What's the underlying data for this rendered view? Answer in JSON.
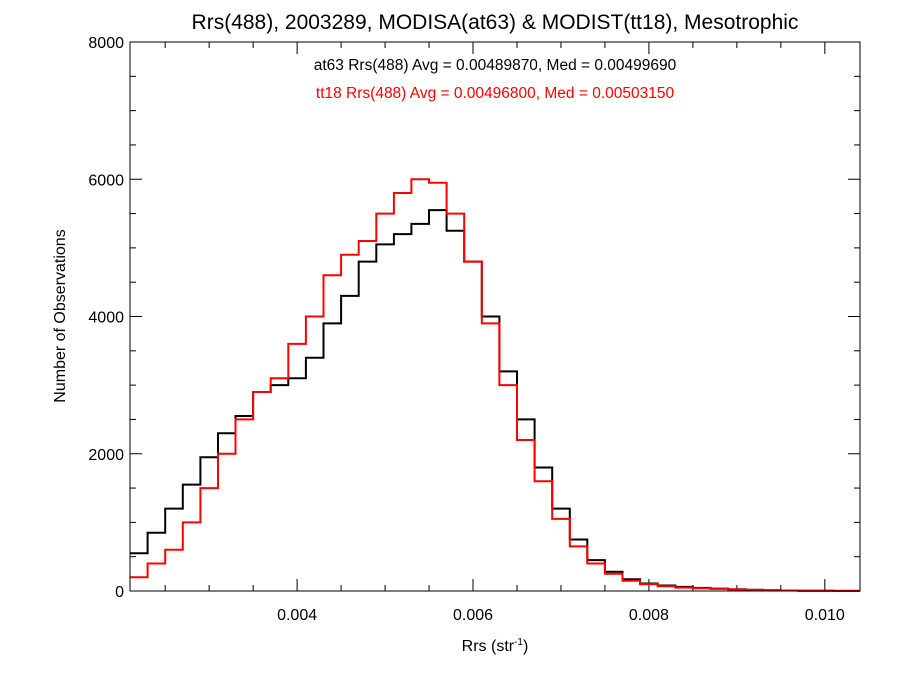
{
  "chart_data": {
    "type": "line",
    "title": "Rrs(488), 2003289, MODISA(at63) & MODIST(tt18), Mesotrophic",
    "xlabel_main": "Rrs (str",
    "xlabel_sup": "-1",
    "xlabel_end": ")",
    "ylabel": "Number of Observations",
    "xlim": [
      0.0021,
      0.0104
    ],
    "ylim": [
      0,
      8000
    ],
    "x_ticks": [
      0.004,
      0.006,
      0.008,
      0.01
    ],
    "x_tick_labels": [
      "0.004",
      "0.006",
      "0.008",
      "0.010"
    ],
    "y_ticks": [
      0,
      2000,
      4000,
      6000,
      8000
    ],
    "y_tick_labels": [
      "0",
      "2000",
      "4000",
      "6000",
      "8000"
    ],
    "grid": false,
    "annotations": [
      {
        "text": "at63 Rrs(488) Avg = 0.00489870, Med = 0.00499690",
        "color": "#000000"
      },
      {
        "text": "tt18 Rrs(488) Avg = 0.00496800, Med = 0.00503150",
        "color": "#ff0000"
      }
    ],
    "series": [
      {
        "color": "#000000",
        "points": [
          [
            0.0021,
            550
          ],
          [
            0.0023,
            850
          ],
          [
            0.0025,
            1200
          ],
          [
            0.0027,
            1550
          ],
          [
            0.0029,
            1950
          ],
          [
            0.0031,
            2300
          ],
          [
            0.0033,
            2550
          ],
          [
            0.0035,
            2900
          ],
          [
            0.0037,
            3000
          ],
          [
            0.0039,
            3100
          ],
          [
            0.0041,
            3400
          ],
          [
            0.0043,
            3900
          ],
          [
            0.0045,
            4300
          ],
          [
            0.0047,
            4800
          ],
          [
            0.0049,
            5050
          ],
          [
            0.0051,
            5200
          ],
          [
            0.0053,
            5350
          ],
          [
            0.0055,
            5550
          ],
          [
            0.0057,
            5250
          ],
          [
            0.0059,
            4800
          ],
          [
            0.0061,
            4000
          ],
          [
            0.0063,
            3200
          ],
          [
            0.0065,
            2500
          ],
          [
            0.0067,
            1800
          ],
          [
            0.0069,
            1200
          ],
          [
            0.0071,
            750
          ],
          [
            0.0073,
            450
          ],
          [
            0.0075,
            280
          ],
          [
            0.0077,
            170
          ],
          [
            0.0079,
            110
          ],
          [
            0.0081,
            80
          ],
          [
            0.0083,
            60
          ],
          [
            0.0085,
            45
          ],
          [
            0.0087,
            35
          ],
          [
            0.0089,
            25
          ],
          [
            0.0091,
            18
          ],
          [
            0.0093,
            12
          ],
          [
            0.0095,
            8
          ],
          [
            0.0097,
            5
          ],
          [
            0.0099,
            3
          ],
          [
            0.0101,
            2
          ],
          [
            0.0104,
            1
          ]
        ]
      },
      {
        "color": "#ff0000",
        "points": [
          [
            0.0021,
            200
          ],
          [
            0.0023,
            400
          ],
          [
            0.0025,
            600
          ],
          [
            0.0027,
            1000
          ],
          [
            0.0029,
            1500
          ],
          [
            0.0031,
            2000
          ],
          [
            0.0033,
            2500
          ],
          [
            0.0035,
            2900
          ],
          [
            0.0037,
            3100
          ],
          [
            0.0039,
            3600
          ],
          [
            0.0041,
            4000
          ],
          [
            0.0043,
            4600
          ],
          [
            0.0045,
            4900
          ],
          [
            0.0047,
            5100
          ],
          [
            0.0049,
            5500
          ],
          [
            0.0051,
            5800
          ],
          [
            0.0053,
            6000
          ],
          [
            0.0055,
            5950
          ],
          [
            0.0057,
            5500
          ],
          [
            0.0059,
            4800
          ],
          [
            0.0061,
            3900
          ],
          [
            0.0063,
            3000
          ],
          [
            0.0065,
            2200
          ],
          [
            0.0067,
            1600
          ],
          [
            0.0069,
            1050
          ],
          [
            0.0071,
            650
          ],
          [
            0.0073,
            400
          ],
          [
            0.0075,
            250
          ],
          [
            0.0077,
            150
          ],
          [
            0.0079,
            100
          ],
          [
            0.0081,
            70
          ],
          [
            0.0083,
            50
          ],
          [
            0.0085,
            40
          ],
          [
            0.0087,
            30
          ],
          [
            0.0089,
            22
          ],
          [
            0.0091,
            15
          ],
          [
            0.0093,
            10
          ],
          [
            0.0095,
            7
          ],
          [
            0.0097,
            4
          ],
          [
            0.0099,
            3
          ],
          [
            0.0101,
            2
          ],
          [
            0.0104,
            1
          ]
        ]
      }
    ]
  }
}
